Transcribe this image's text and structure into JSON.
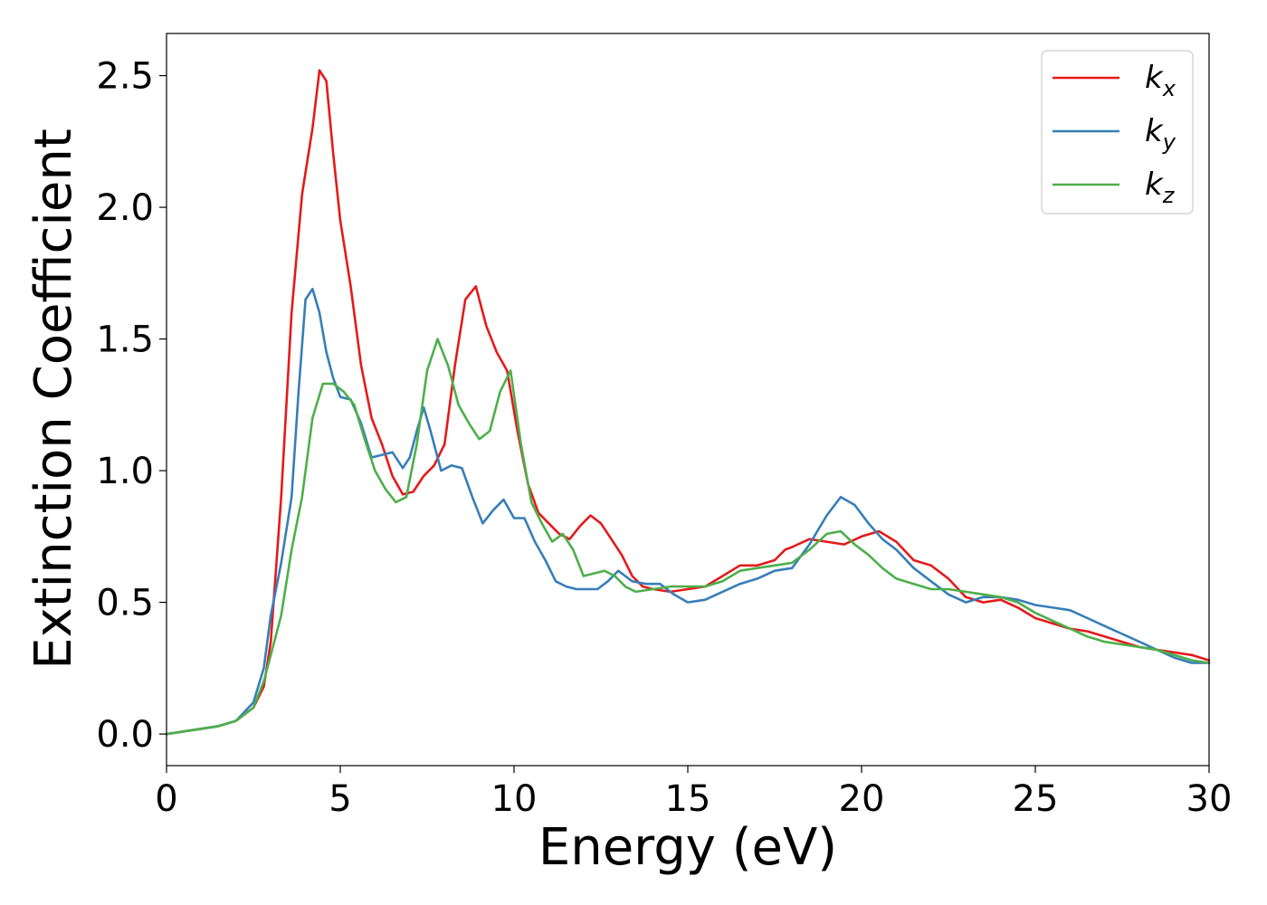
{
  "chart_data": {
    "type": "line",
    "xlabel": "Energy (eV)",
    "ylabel": "Extinction Coefficient",
    "xlim": [
      0,
      30
    ],
    "ylim": [
      -0.12,
      2.66
    ],
    "xticks": [
      "0",
      "5",
      "10",
      "15",
      "20",
      "25",
      "30"
    ],
    "yticks": [
      "0.0",
      "0.5",
      "1.0",
      "1.5",
      "2.0",
      "2.5"
    ],
    "legend_position": "top-right",
    "grid": false,
    "series": [
      {
        "name": "k",
        "subscript": "x",
        "color": "#e41a1c",
        "x": [
          0,
          1,
          1.5,
          2,
          2.5,
          2.8,
          3,
          3.3,
          3.6,
          3.9,
          4.2,
          4.4,
          4.6,
          4.8,
          5.0,
          5.3,
          5.6,
          5.9,
          6.2,
          6.5,
          6.8,
          7.1,
          7.4,
          7.7,
          8.0,
          8.3,
          8.6,
          8.9,
          9.2,
          9.5,
          9.8,
          10.1,
          10.4,
          10.7,
          11.0,
          11.3,
          11.6,
          11.9,
          12.2,
          12.5,
          12.8,
          13.1,
          13.4,
          13.7,
          14.0,
          14.5,
          15.0,
          15.5,
          16.0,
          16.5,
          17.0,
          17.5,
          17.8,
          18.0,
          18.5,
          19.0,
          19.5,
          20.0,
          20.5,
          21.0,
          21.5,
          22.0,
          22.5,
          23.0,
          23.5,
          24.0,
          24.5,
          25.0,
          25.5,
          26.0,
          26.5,
          27.0,
          27.5,
          28.0,
          28.5,
          29.0,
          29.5,
          30.0
        ],
        "y": [
          0.0,
          0.02,
          0.03,
          0.05,
          0.1,
          0.18,
          0.35,
          0.9,
          1.6,
          2.05,
          2.3,
          2.52,
          2.48,
          2.2,
          1.95,
          1.7,
          1.4,
          1.2,
          1.1,
          0.98,
          0.91,
          0.92,
          0.98,
          1.02,
          1.1,
          1.4,
          1.65,
          1.7,
          1.55,
          1.45,
          1.38,
          1.15,
          0.95,
          0.84,
          0.8,
          0.76,
          0.74,
          0.79,
          0.83,
          0.8,
          0.74,
          0.68,
          0.6,
          0.56,
          0.55,
          0.54,
          0.55,
          0.56,
          0.6,
          0.64,
          0.64,
          0.66,
          0.7,
          0.71,
          0.74,
          0.73,
          0.72,
          0.75,
          0.77,
          0.73,
          0.66,
          0.64,
          0.59,
          0.52,
          0.5,
          0.51,
          0.48,
          0.44,
          0.42,
          0.4,
          0.39,
          0.37,
          0.35,
          0.33,
          0.32,
          0.31,
          0.3,
          0.28
        ]
      },
      {
        "name": "k",
        "subscript": "y",
        "color": "#377eb8",
        "x": [
          0,
          1,
          1.5,
          2,
          2.5,
          2.8,
          3,
          3.3,
          3.6,
          3.8,
          4.0,
          4.2,
          4.4,
          4.6,
          4.8,
          5.0,
          5.3,
          5.6,
          5.9,
          6.2,
          6.5,
          6.8,
          7.0,
          7.2,
          7.4,
          7.6,
          7.9,
          8.2,
          8.5,
          8.8,
          9.1,
          9.4,
          9.7,
          10.0,
          10.3,
          10.6,
          10.9,
          11.2,
          11.5,
          11.8,
          12.1,
          12.4,
          12.7,
          13.0,
          13.4,
          13.8,
          14.2,
          14.6,
          15.0,
          15.5,
          16.0,
          16.5,
          17.0,
          17.5,
          18.0,
          18.5,
          19.0,
          19.4,
          19.8,
          20.2,
          20.6,
          21.0,
          21.5,
          22.0,
          22.5,
          23.0,
          23.5,
          24.0,
          24.5,
          25.0,
          25.5,
          26.0,
          26.5,
          27.0,
          27.5,
          28.0,
          28.5,
          29.0,
          29.5,
          30.0
        ],
        "y": [
          0.0,
          0.02,
          0.03,
          0.05,
          0.12,
          0.25,
          0.45,
          0.65,
          0.9,
          1.3,
          1.65,
          1.69,
          1.6,
          1.45,
          1.35,
          1.28,
          1.27,
          1.18,
          1.05,
          1.06,
          1.07,
          1.01,
          1.05,
          1.15,
          1.24,
          1.15,
          1.0,
          1.02,
          1.01,
          0.9,
          0.8,
          0.85,
          0.89,
          0.82,
          0.82,
          0.73,
          0.66,
          0.58,
          0.56,
          0.55,
          0.55,
          0.55,
          0.58,
          0.62,
          0.58,
          0.57,
          0.57,
          0.53,
          0.5,
          0.51,
          0.54,
          0.57,
          0.59,
          0.62,
          0.63,
          0.72,
          0.83,
          0.9,
          0.87,
          0.8,
          0.74,
          0.7,
          0.63,
          0.58,
          0.53,
          0.5,
          0.52,
          0.52,
          0.51,
          0.49,
          0.48,
          0.47,
          0.44,
          0.41,
          0.38,
          0.35,
          0.32,
          0.29,
          0.27,
          0.27
        ]
      },
      {
        "name": "k",
        "subscript": "z",
        "color": "#4daf4a",
        "x": [
          0,
          1,
          1.5,
          2,
          2.5,
          2.8,
          3.0,
          3.3,
          3.6,
          3.9,
          4.2,
          4.5,
          4.8,
          5.1,
          5.4,
          5.7,
          6.0,
          6.3,
          6.6,
          6.9,
          7.2,
          7.5,
          7.8,
          8.1,
          8.4,
          8.7,
          9.0,
          9.3,
          9.6,
          9.9,
          10.2,
          10.5,
          10.8,
          11.1,
          11.4,
          11.7,
          12.0,
          12.3,
          12.6,
          12.9,
          13.2,
          13.5,
          14.0,
          14.5,
          15.0,
          15.5,
          16.0,
          16.5,
          17.0,
          17.5,
          18.0,
          18.5,
          19.0,
          19.4,
          19.8,
          20.2,
          20.6,
          21.0,
          21.5,
          22.0,
          22.5,
          23.0,
          23.5,
          24.0,
          24.5,
          25.0,
          25.5,
          26.0,
          26.5,
          27.0,
          27.5,
          28.0,
          28.5,
          29.0,
          29.5,
          30.0
        ],
        "y": [
          0.0,
          0.02,
          0.03,
          0.05,
          0.1,
          0.2,
          0.3,
          0.45,
          0.7,
          0.9,
          1.2,
          1.33,
          1.33,
          1.3,
          1.25,
          1.12,
          1.0,
          0.93,
          0.88,
          0.9,
          1.1,
          1.38,
          1.5,
          1.4,
          1.25,
          1.18,
          1.12,
          1.15,
          1.3,
          1.38,
          1.1,
          0.88,
          0.8,
          0.73,
          0.76,
          0.7,
          0.6,
          0.61,
          0.62,
          0.6,
          0.56,
          0.54,
          0.55,
          0.56,
          0.56,
          0.56,
          0.58,
          0.62,
          0.63,
          0.64,
          0.65,
          0.7,
          0.76,
          0.77,
          0.72,
          0.68,
          0.63,
          0.59,
          0.57,
          0.55,
          0.55,
          0.54,
          0.53,
          0.52,
          0.5,
          0.46,
          0.43,
          0.4,
          0.37,
          0.35,
          0.34,
          0.33,
          0.32,
          0.3,
          0.28,
          0.27
        ]
      }
    ]
  }
}
